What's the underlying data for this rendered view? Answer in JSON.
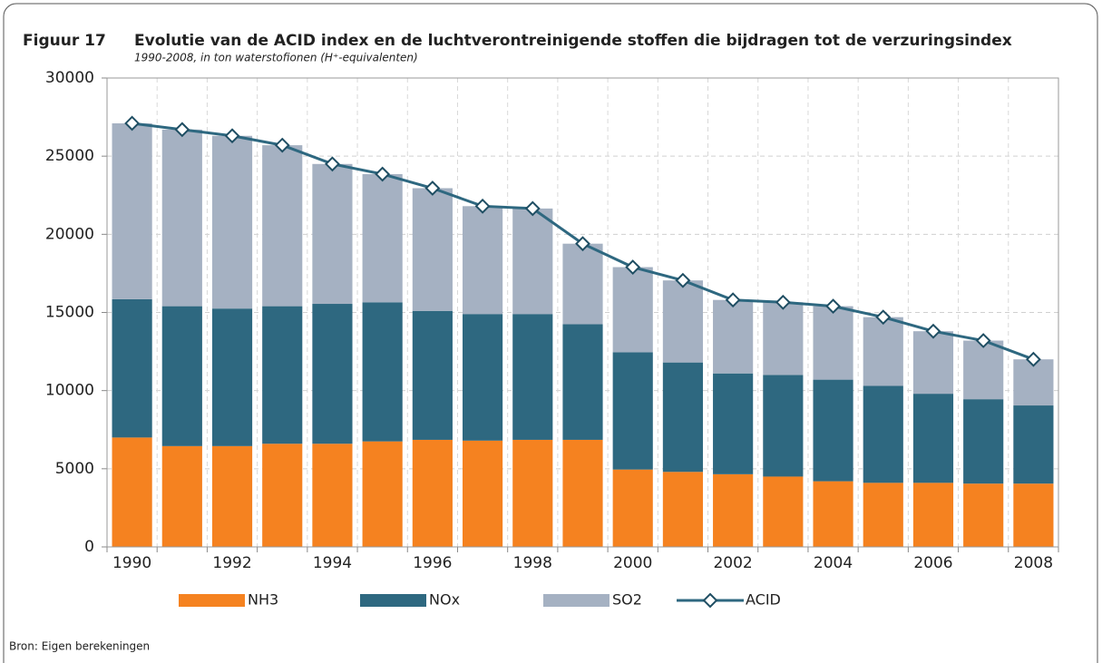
{
  "chart_data": {
    "type": "bar",
    "figure_label": "Figuur 17",
    "title": "Evolutie van de ACID index en de luchtverontreinigende stoffen die bijdragen tot de verzuringsindex",
    "subtitle": "1990-2008, in ton waterstofionen (H⁺-equivalenten)",
    "source": "Bron: Eigen berekeningen",
    "stacked": true,
    "grid": true,
    "legend": "bottom",
    "categories": [
      "1990",
      null,
      "1992",
      null,
      "1994",
      null,
      "1996",
      null,
      "1998",
      null,
      "2000",
      null,
      "2002",
      null,
      "2004",
      null,
      "2006",
      null,
      "2008"
    ],
    "series": [
      {
        "name": "NH3",
        "type": "bar",
        "color": "#f58220",
        "values": [
          7000,
          6450,
          6450,
          6600,
          6600,
          6750,
          6850,
          6800,
          6850,
          6850,
          4950,
          4800,
          4650,
          4500,
          4200,
          4100,
          4100,
          4050,
          4050
        ]
      },
      {
        "name": "NOx",
        "type": "bar",
        "color": "#2e6880",
        "values": [
          8850,
          8950,
          8800,
          8800,
          8950,
          8900,
          8250,
          8100,
          8050,
          7400,
          7500,
          7000,
          6450,
          6500,
          6500,
          6200,
          5700,
          5400,
          5000
        ]
      },
      {
        "name": "SO2",
        "type": "bar",
        "color": "#a5b1c2",
        "values": [
          11250,
          11300,
          11050,
          10300,
          8950,
          8200,
          7850,
          6900,
          6750,
          5150,
          5450,
          5250,
          4700,
          4650,
          4700,
          4400,
          4000,
          3750,
          2950
        ]
      },
      {
        "name": "ACID",
        "type": "line",
        "color": "#2e6880",
        "values": [
          27100,
          26700,
          26300,
          25700,
          24500,
          23850,
          22950,
          21800,
          21650,
          19400,
          17900,
          17050,
          15800,
          15650,
          15400,
          14700,
          13800,
          13200,
          12000
        ]
      }
    ],
    "ylim": [
      0,
      30000
    ],
    "yticks": [
      0,
      5000,
      10000,
      15000,
      20000,
      25000,
      30000
    ]
  }
}
